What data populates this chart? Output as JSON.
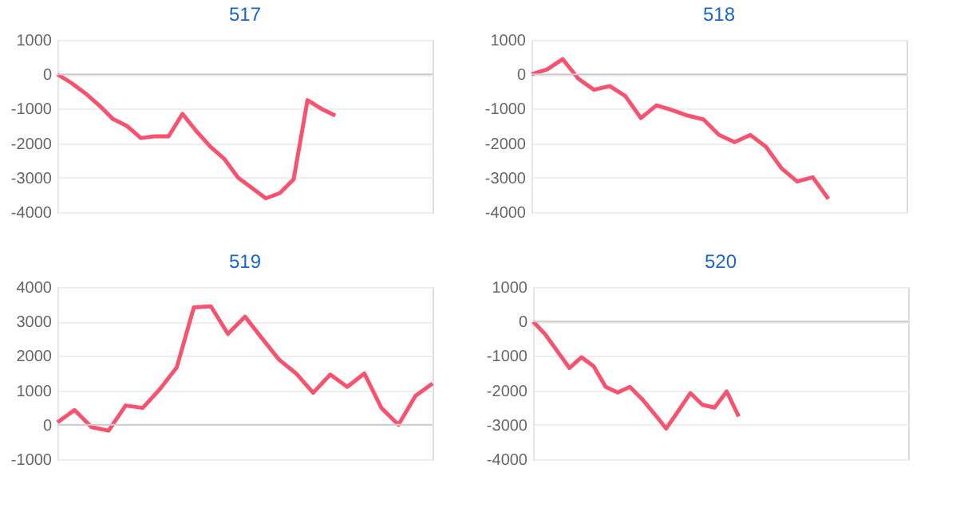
{
  "chart_data": [
    {
      "type": "line",
      "title": "517",
      "categories": [
        null,
        null,
        null,
        null,
        null,
        null,
        null,
        null,
        null,
        null,
        null,
        null,
        null,
        null,
        null,
        null,
        null,
        null,
        null,
        null,
        null,
        null,
        null,
        null,
        null,
        null,
        null,
        null
      ],
      "series": [
        {
          "color": "#f7536f",
          "values": [
            0,
            -250,
            -550,
            -900,
            -1300,
            -1500,
            -1850,
            -1800,
            -1800,
            -1150,
            -1650,
            -2100,
            -2450,
            -3000,
            -3300,
            -3600,
            -3450,
            -3050,
            -750,
            -1000,
            -1200,
            null,
            null,
            null,
            null,
            null,
            null,
            null
          ]
        }
      ],
      "ylim": [
        -4000,
        1000
      ],
      "yticks": [
        -4000,
        -3000,
        -2000,
        -1000,
        0,
        1000
      ],
      "grid": "y",
      "tick_labels": "y",
      "ref_lines": [
        {
          "axis": "y",
          "value": 0,
          "color": "#cccccc"
        }
      ]
    },
    {
      "type": "line",
      "title": "518",
      "categories": [
        null,
        null,
        null,
        null,
        null,
        null,
        null,
        null,
        null,
        null,
        null,
        null,
        null,
        null,
        null,
        null,
        null,
        null,
        null,
        null,
        null,
        null,
        null,
        null,
        null
      ],
      "series": [
        {
          "color": "#f7536f",
          "values": [
            0,
            140,
            440,
            -130,
            -450,
            -340,
            -630,
            -1270,
            -900,
            -1040,
            -1200,
            -1310,
            -1760,
            -1970,
            -1760,
            -2100,
            -2730,
            -3110,
            -2990,
            -3620,
            null,
            null,
            null,
            null,
            null
          ]
        }
      ],
      "ylim": [
        -4000,
        1000
      ],
      "yticks": [
        -4000,
        -3000,
        -2000,
        -1000,
        0,
        1000
      ],
      "grid": "y",
      "tick_labels": "y",
      "ref_lines": [
        {
          "axis": "y",
          "value": 0,
          "color": "#cccccc"
        }
      ]
    },
    {
      "type": "line",
      "title": "519",
      "categories": [
        null,
        null,
        null,
        null,
        null,
        null,
        null,
        null,
        null,
        null,
        null,
        null,
        null,
        null,
        null,
        null,
        null,
        null,
        null,
        null,
        null,
        null,
        null
      ],
      "series": [
        {
          "color": "#f7536f",
          "values": [
            70,
            430,
            -70,
            -170,
            560,
            490,
            1030,
            1670,
            3410,
            3440,
            2640,
            3140,
            2510,
            1890,
            1490,
            930,
            1460,
            1100,
            1490,
            490,
            0,
            840,
            1200
          ]
        }
      ],
      "ylim": [
        -1000,
        4000
      ],
      "yticks": [
        -1000,
        0,
        1000,
        2000,
        3000,
        4000
      ],
      "grid": "y",
      "tick_labels": "y",
      "ref_lines": [
        {
          "axis": "y",
          "value": 0,
          "color": "#cccccc"
        }
      ]
    },
    {
      "type": "line",
      "title": "520",
      "categories": [
        null,
        null,
        null,
        null,
        null,
        null,
        null,
        null,
        null,
        null,
        null,
        null,
        null,
        null,
        null,
        null,
        null,
        null,
        null,
        null,
        null,
        null,
        null,
        null,
        null,
        null,
        null,
        null,
        null,
        null,
        null,
        null
      ],
      "series": [
        {
          "color": "#f7536f",
          "values": [
            0,
            -370,
            -860,
            -1350,
            -1040,
            -1300,
            -1900,
            -2060,
            -1900,
            -2250,
            -2670,
            -3110,
            -2600,
            -2080,
            -2420,
            -2500,
            -2030,
            -2760,
            null,
            null,
            null,
            null,
            null,
            null,
            null,
            null,
            null,
            null,
            null,
            null,
            null,
            null
          ]
        }
      ],
      "ylim": [
        -4000,
        1000
      ],
      "yticks": [
        -4000,
        -3000,
        -2000,
        -1000,
        0,
        1000
      ],
      "grid": "y",
      "tick_labels": "y",
      "ref_lines": [
        {
          "axis": "y",
          "value": 0,
          "color": "#cccccc"
        }
      ]
    }
  ]
}
